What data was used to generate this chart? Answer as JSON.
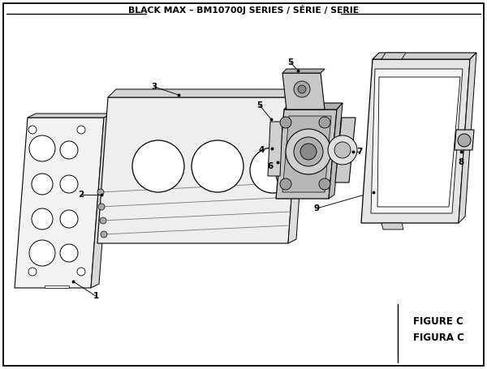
{
  "title": "BLACK MAX – BM10700J SERIES / SÉRIE / SERIE",
  "figure_label": "FIGURE C",
  "figura_label": "FIGURA C",
  "bg_color": "#ffffff",
  "line_color": "#000000",
  "text_color": "#000000",
  "gray_light": "#e8e8e8",
  "gray_mid": "#cccccc",
  "gray_dark": "#aaaaaa",
  "gray_darker": "#888888"
}
